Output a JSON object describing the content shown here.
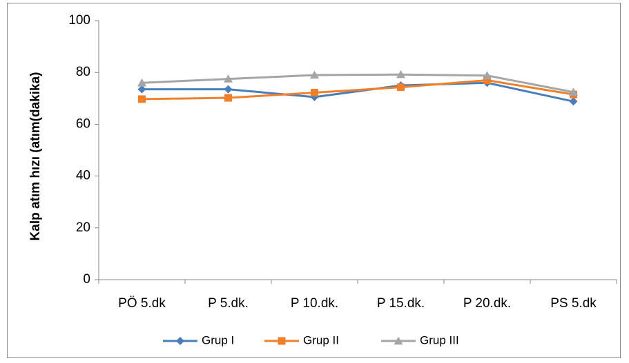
{
  "chart_data": {
    "type": "line",
    "title": "",
    "xlabel": "",
    "ylabel": "Kalp atım hızı (atım(dakika)",
    "categories": [
      "PÖ 5.dk",
      "P 5.dk.",
      "P 10.dk.",
      "P 15.dk.",
      "P 20.dk.",
      "PS 5.dk"
    ],
    "ylim": [
      0,
      100
    ],
    "yticks": [
      0,
      20,
      40,
      60,
      80,
      100
    ],
    "grid": false,
    "legend_position": "bottom",
    "series": [
      {
        "name": "Grup I",
        "color": "#4A7EBB",
        "marker": "diamond",
        "values": [
          73.5,
          73.5,
          70.5,
          75.0,
          76.0,
          68.8
        ]
      },
      {
        "name": "Grup II",
        "color": "#F07F2A",
        "marker": "square",
        "values": [
          69.7,
          70.2,
          72.2,
          74.3,
          77.0,
          71.5
        ]
      },
      {
        "name": "Grup III",
        "color": "#A5A5A5",
        "marker": "triangle",
        "values": [
          76.0,
          77.5,
          79.0,
          79.2,
          78.8,
          72.4
        ]
      }
    ]
  }
}
